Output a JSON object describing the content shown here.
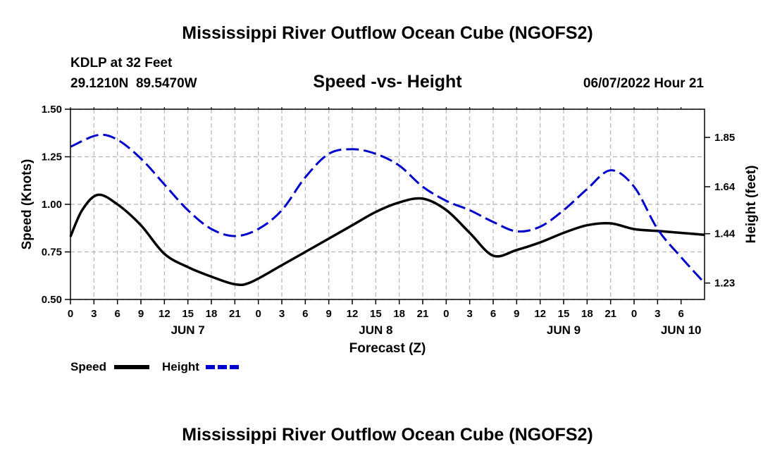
{
  "title": "Mississippi River Outflow Ocean Cube (NGOFS2)",
  "station": {
    "name": "KDLP at 32 Feet",
    "coords": "29.1210N  89.5470W"
  },
  "subtitle": "Speed -vs- Height",
  "run_time": "06/07/2022 Hour 21",
  "footer_title": "Mississippi River Outflow Ocean Cube (NGOFS2)",
  "colors": {
    "speed": "#000000",
    "height": "#0000cc",
    "grid": "#b4b4b4"
  },
  "chart_data": {
    "type": "line",
    "xlabel": "Forecast (Z)",
    "ylabel_left": "Speed (Knots)",
    "ylabel_right": "Height (feet)",
    "x_range_hours": [
      0,
      81
    ],
    "speed_range": [
      0.5,
      1.5
    ],
    "height_range": [
      1.16,
      1.97
    ],
    "speed_ticks": [
      "0.50",
      "0.75",
      "1.00",
      "1.25",
      "1.50"
    ],
    "height_ticks": [
      "1.23",
      "1.44",
      "1.64",
      "1.85"
    ],
    "x_ticks": [
      "0",
      "3",
      "6",
      "9",
      "12",
      "15",
      "18",
      "21",
      "0",
      "3",
      "6",
      "9",
      "12",
      "15",
      "18",
      "21",
      "0",
      "3",
      "6",
      "9",
      "12",
      "15",
      "18",
      "21",
      "0",
      "3",
      "6"
    ],
    "day_labels": [
      {
        "hour": 15,
        "label": "JUN 7"
      },
      {
        "hour": 39,
        "label": "JUN 8"
      },
      {
        "hour": 63,
        "label": "JUN 9"
      },
      {
        "hour": 78,
        "label": "JUN 10"
      }
    ],
    "legend": [
      {
        "name": "Speed",
        "style": "solid"
      },
      {
        "name": "Height",
        "style": "dashed"
      }
    ],
    "series": [
      {
        "name": "Speed",
        "axis": "left",
        "x": [
          0,
          1.5,
          3.5,
          6,
          9,
          12,
          15,
          18,
          21,
          23,
          27,
          33,
          36,
          39,
          42,
          45,
          48,
          51,
          54,
          57,
          60,
          63,
          66,
          69,
          72,
          75,
          78,
          81
        ],
        "values": [
          0.83,
          0.97,
          1.05,
          1.0,
          0.89,
          0.74,
          0.67,
          0.62,
          0.58,
          0.59,
          0.68,
          0.82,
          0.89,
          0.96,
          1.01,
          1.03,
          0.97,
          0.85,
          0.73,
          0.76,
          0.8,
          0.85,
          0.89,
          0.9,
          0.87,
          0.86,
          0.85,
          0.84
        ]
      },
      {
        "name": "Height",
        "axis": "right",
        "x": [
          0,
          3.5,
          6,
          9,
          12,
          15,
          18,
          21,
          24,
          27,
          30,
          33,
          36,
          39,
          42,
          45,
          48,
          51,
          54,
          57,
          60,
          63,
          66,
          69,
          72,
          75,
          78,
          81
        ],
        "values": [
          1.81,
          1.86,
          1.84,
          1.76,
          1.65,
          1.54,
          1.46,
          1.43,
          1.46,
          1.54,
          1.68,
          1.78,
          1.8,
          1.78,
          1.73,
          1.64,
          1.58,
          1.54,
          1.49,
          1.45,
          1.47,
          1.54,
          1.63,
          1.71,
          1.64,
          1.46,
          1.34,
          1.23
        ]
      }
    ]
  }
}
